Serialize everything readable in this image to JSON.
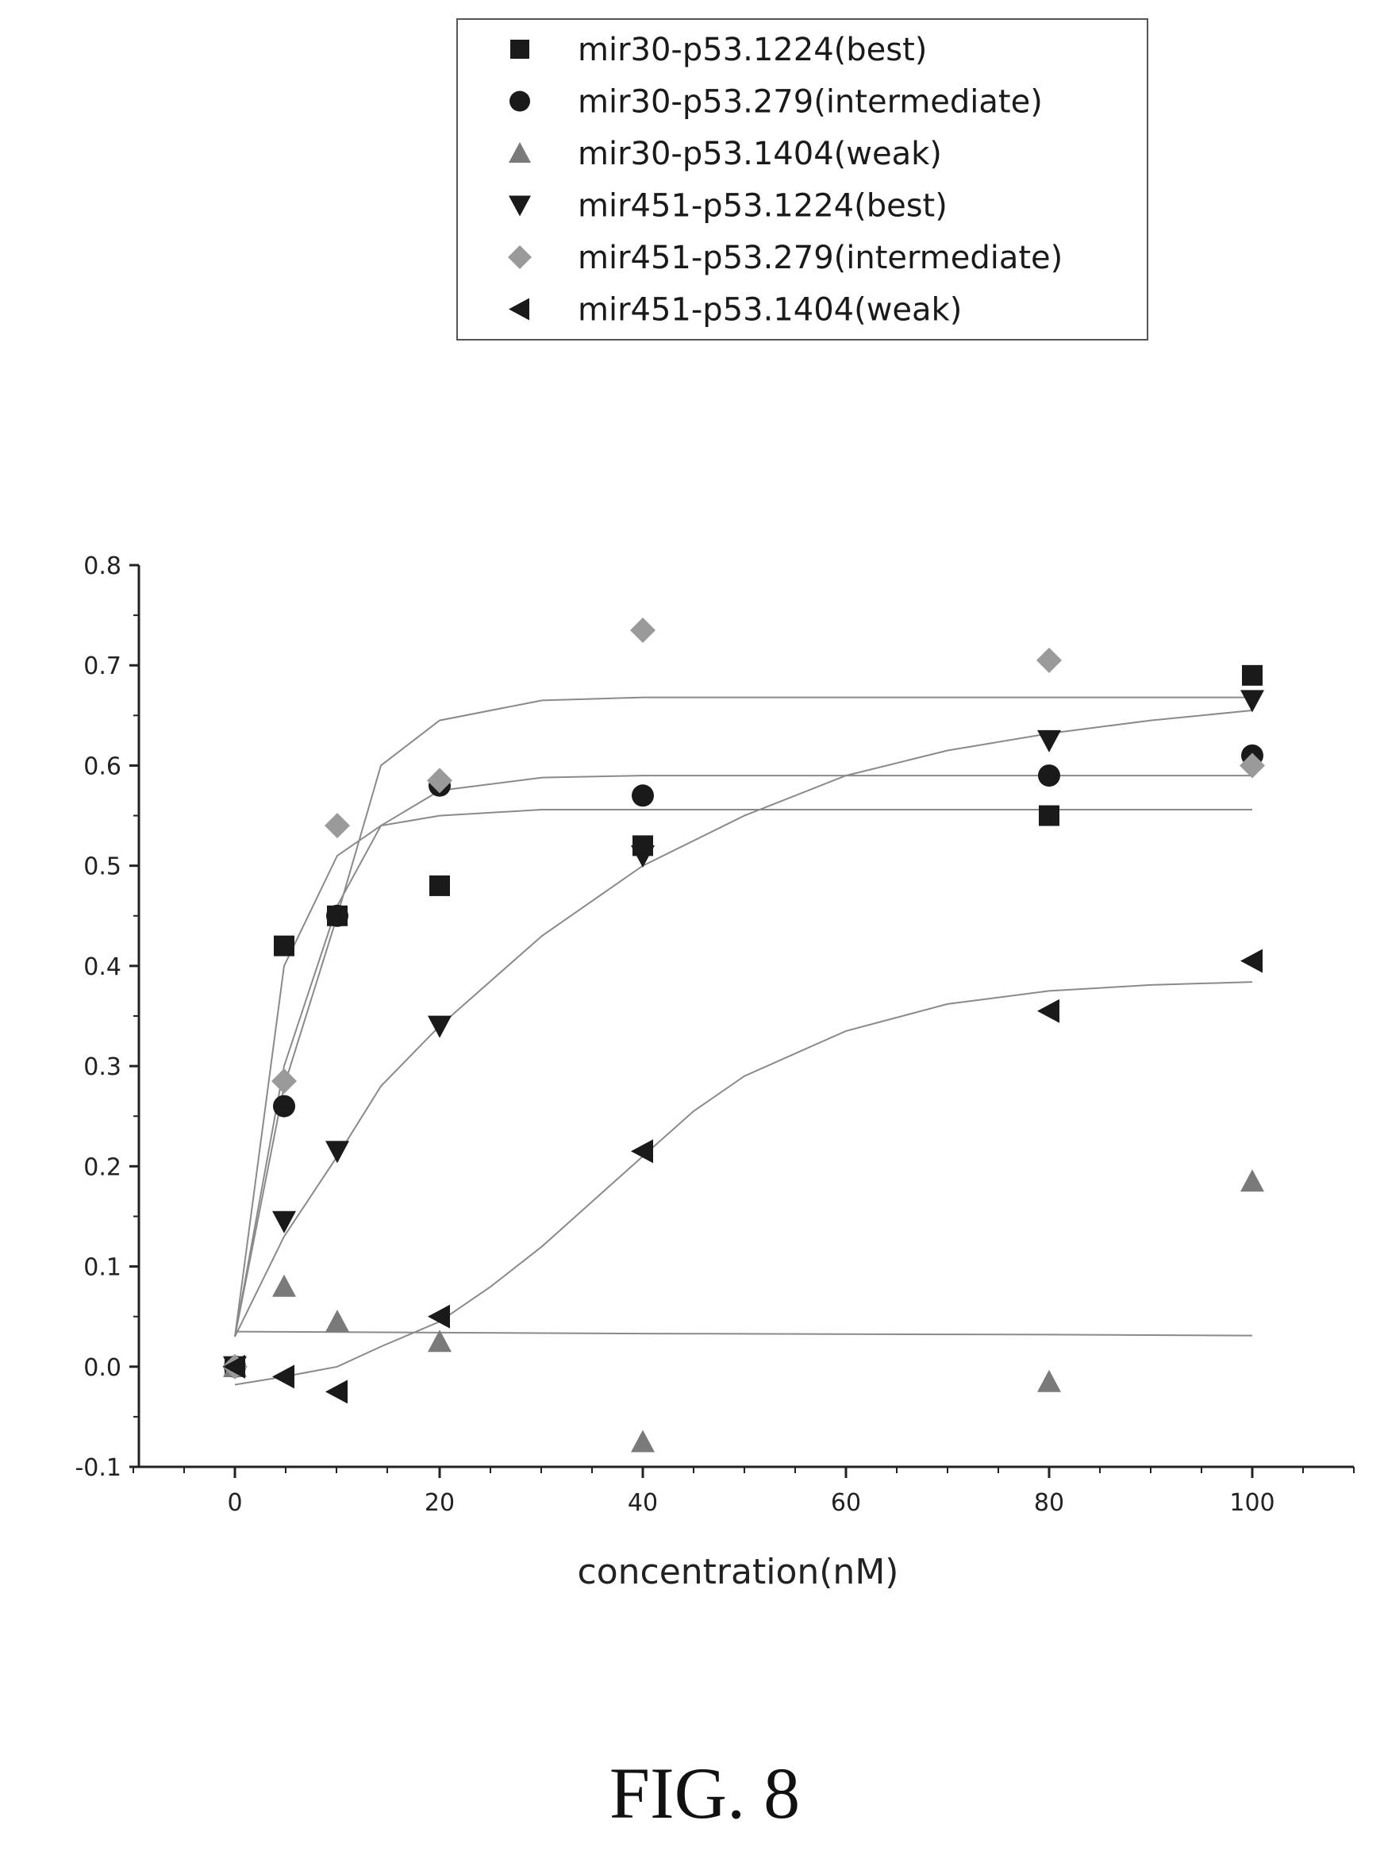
{
  "figure_caption": "FIG. 8",
  "chart_data": {
    "type": "scatter",
    "xlabel": "concentration(nM)",
    "ylabel": "",
    "title": "",
    "x_axis": {
      "scale": "categorical-spaced",
      "tick_labels": [
        "0",
        "20",
        "40",
        "60",
        "80",
        "100"
      ],
      "tick_values": [
        0,
        20,
        40,
        60,
        80,
        100
      ]
    },
    "y_axis": {
      "ylim": [
        -0.1,
        0.8
      ],
      "tick_labels": [
        "-0.1",
        "0.0",
        "0.1",
        "0.2",
        "0.3",
        "0.4",
        "0.5",
        "0.6",
        "0.7",
        "0.8"
      ],
      "tick_values": [
        -0.1,
        0.0,
        0.1,
        0.2,
        0.3,
        0.4,
        0.5,
        0.6,
        0.7,
        0.8
      ]
    },
    "grid": false,
    "legend_position": "top",
    "series": [
      {
        "name": "mir30-p53.1224(best)",
        "marker": "square",
        "color": "#1a1a1a",
        "points": [
          [
            0,
            0.0
          ],
          [
            5,
            0.42
          ],
          [
            10,
            0.45
          ],
          [
            20,
            0.48
          ],
          [
            40,
            0.52
          ],
          [
            80,
            0.55
          ],
          [
            100,
            0.69
          ]
        ],
        "fit": [
          [
            0,
            0.03
          ],
          [
            5,
            0.4
          ],
          [
            10,
            0.51
          ],
          [
            15,
            0.54
          ],
          [
            20,
            0.55
          ],
          [
            30,
            0.556
          ],
          [
            40,
            0.556
          ],
          [
            80,
            0.556
          ],
          [
            100,
            0.556
          ]
        ]
      },
      {
        "name": "mir30-p53.279(intermediate)",
        "marker": "circle",
        "color": "#1a1a1a",
        "points": [
          [
            0,
            0.0
          ],
          [
            5,
            0.26
          ],
          [
            10,
            0.45
          ],
          [
            20,
            0.58
          ],
          [
            40,
            0.57
          ],
          [
            80,
            0.59
          ],
          [
            100,
            0.61
          ]
        ],
        "fit": [
          [
            0,
            0.03
          ],
          [
            5,
            0.3
          ],
          [
            10,
            0.46
          ],
          [
            15,
            0.54
          ],
          [
            20,
            0.575
          ],
          [
            30,
            0.588
          ],
          [
            40,
            0.59
          ],
          [
            80,
            0.59
          ],
          [
            100,
            0.59
          ]
        ]
      },
      {
        "name": "mir30-p53.1404(weak)",
        "marker": "triangle-up",
        "color": "#7a7a7a",
        "points": [
          [
            0,
            0.0
          ],
          [
            5,
            0.08
          ],
          [
            10,
            0.045
          ],
          [
            20,
            0.025
          ],
          [
            40,
            -0.075
          ],
          [
            80,
            -0.015
          ],
          [
            100,
            0.185
          ]
        ],
        "fit": [
          [
            0,
            0.035
          ],
          [
            20,
            0.034
          ],
          [
            40,
            0.033
          ],
          [
            80,
            0.032
          ],
          [
            100,
            0.031
          ]
        ]
      },
      {
        "name": "mir451-p53.1224(best)",
        "marker": "triangle-down",
        "color": "#1a1a1a",
        "points": [
          [
            0,
            0.0
          ],
          [
            5,
            0.145
          ],
          [
            10,
            0.215
          ],
          [
            20,
            0.34
          ],
          [
            40,
            0.51
          ],
          [
            80,
            0.625
          ],
          [
            100,
            0.665
          ]
        ],
        "fit": [
          [
            0,
            0.03
          ],
          [
            5,
            0.13
          ],
          [
            10,
            0.21
          ],
          [
            15,
            0.28
          ],
          [
            20,
            0.34
          ],
          [
            30,
            0.43
          ],
          [
            40,
            0.5
          ],
          [
            50,
            0.55
          ],
          [
            60,
            0.59
          ],
          [
            70,
            0.615
          ],
          [
            80,
            0.632
          ],
          [
            90,
            0.645
          ],
          [
            100,
            0.655
          ]
        ]
      },
      {
        "name": "mir451-p53.279(intermediate)",
        "marker": "diamond",
        "color": "#9a9a9a",
        "points": [
          [
            0,
            0.0
          ],
          [
            5,
            0.285
          ],
          [
            10,
            0.54
          ],
          [
            20,
            0.585
          ],
          [
            40,
            0.735
          ],
          [
            80,
            0.705
          ],
          [
            100,
            0.6
          ]
        ],
        "fit": [
          [
            0,
            0.03
          ],
          [
            5,
            0.28
          ],
          [
            10,
            0.45
          ],
          [
            15,
            0.6
          ],
          [
            20,
            0.645
          ],
          [
            30,
            0.665
          ],
          [
            40,
            0.668
          ],
          [
            80,
            0.668
          ],
          [
            100,
            0.668
          ]
        ]
      },
      {
        "name": "mir451-p53.1404(weak)",
        "marker": "triangle-left",
        "color": "#1a1a1a",
        "points": [
          [
            0,
            0.0
          ],
          [
            5,
            -0.01
          ],
          [
            10,
            -0.025
          ],
          [
            20,
            0.05
          ],
          [
            40,
            0.215
          ],
          [
            80,
            0.355
          ],
          [
            100,
            0.405
          ]
        ],
        "fit": [
          [
            0,
            -0.018
          ],
          [
            5,
            -0.01
          ],
          [
            10,
            0.0
          ],
          [
            15,
            0.02
          ],
          [
            20,
            0.045
          ],
          [
            25,
            0.08
          ],
          [
            30,
            0.12
          ],
          [
            35,
            0.165
          ],
          [
            40,
            0.21
          ],
          [
            45,
            0.255
          ],
          [
            50,
            0.29
          ],
          [
            60,
            0.335
          ],
          [
            70,
            0.362
          ],
          [
            80,
            0.375
          ],
          [
            90,
            0.381
          ],
          [
            100,
            0.384
          ]
        ]
      }
    ]
  }
}
